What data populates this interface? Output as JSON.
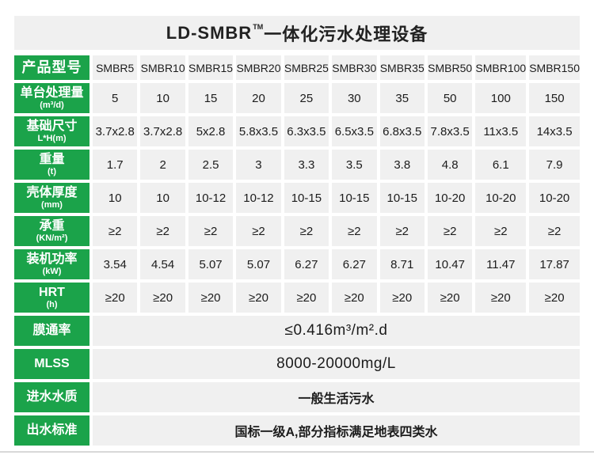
{
  "title": {
    "brand": "LD-SMBR",
    "tm": "TM",
    "suffix": "一体化污水处理设备"
  },
  "colors": {
    "green": "#1BA34A",
    "cell_bg": "#F0F0F0",
    "text": "#1C1C1C"
  },
  "table": {
    "model_row": {
      "label": "产品型号",
      "models": [
        "SMBR5",
        "SMBR10",
        "SMBR15",
        "SMBR20",
        "SMBR25",
        "SMBR30",
        "SMBR35",
        "SMBR50",
        "SMBR100",
        "SMBR150"
      ]
    },
    "spec_rows": [
      {
        "label": "单台处理量",
        "unit": "(m³/d)",
        "values": [
          "5",
          "10",
          "15",
          "20",
          "25",
          "30",
          "35",
          "50",
          "100",
          "150"
        ]
      },
      {
        "label": "基础尺寸",
        "unit": "L*H(m)",
        "values": [
          "3.7x2.8",
          "3.7x2.8",
          "5x2.8",
          "5.8x3.5",
          "6.3x3.5",
          "6.5x3.5",
          "6.8x3.5",
          "7.8x3.5",
          "11x3.5",
          "14x3.5"
        ]
      },
      {
        "label": "重量",
        "unit": "(t)",
        "values": [
          "1.7",
          "2",
          "2.5",
          "3",
          "3.3",
          "3.5",
          "3.8",
          "4.8",
          "6.1",
          "7.9"
        ]
      },
      {
        "label": "壳体厚度",
        "unit": "(mm)",
        "values": [
          "10",
          "10",
          "10-12",
          "10-12",
          "10-15",
          "10-15",
          "10-15",
          "10-20",
          "10-20",
          "10-20"
        ]
      },
      {
        "label": "承重",
        "unit": "(KN/m²)",
        "values": [
          "≥2",
          "≥2",
          "≥2",
          "≥2",
          "≥2",
          "≥2",
          "≥2",
          "≥2",
          "≥2",
          "≥2"
        ]
      },
      {
        "label": "装机功率",
        "unit": "(kW)",
        "values": [
          "3.54",
          "4.54",
          "5.07",
          "5.07",
          "6.27",
          "6.27",
          "8.71",
          "10.47",
          "11.47",
          "17.87"
        ]
      },
      {
        "label": "HRT",
        "unit": "(h)",
        "values": [
          "≥20",
          "≥20",
          "≥20",
          "≥20",
          "≥20",
          "≥20",
          "≥20",
          "≥20",
          "≥20",
          "≥20"
        ]
      }
    ],
    "span_rows": [
      {
        "label": "膜通率",
        "value": "≤0.416m³/m².d"
      },
      {
        "label": "MLSS",
        "value": "8000-20000mg/L"
      },
      {
        "label": "进水水质",
        "value": "一般生活污水"
      },
      {
        "label": "出水标准",
        "value": "国标一级A,部分指标满足地表四类水"
      }
    ]
  }
}
